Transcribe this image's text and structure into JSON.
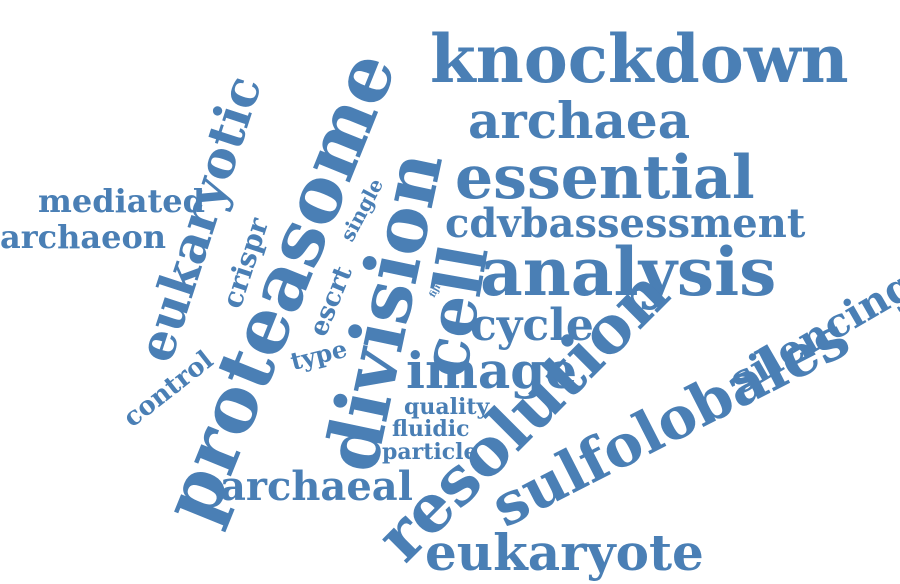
{
  "word_color": "#4a7fb5",
  "background_color": "#ffffff",
  "words": [
    "knockdown",
    "archaea",
    "essential",
    "cdvbassessment",
    "analysis",
    "cycle",
    "image",
    "silencing",
    "sulfolobales",
    "resolution",
    "eukaryote",
    "archaeal",
    "proteasome",
    "division",
    "cell",
    "eukaryotic",
    "mediated",
    "archaeon",
    "crispr",
    "escrt",
    "single",
    "fiji",
    "type",
    "control",
    "quality",
    "fluidic",
    "particle"
  ]
}
